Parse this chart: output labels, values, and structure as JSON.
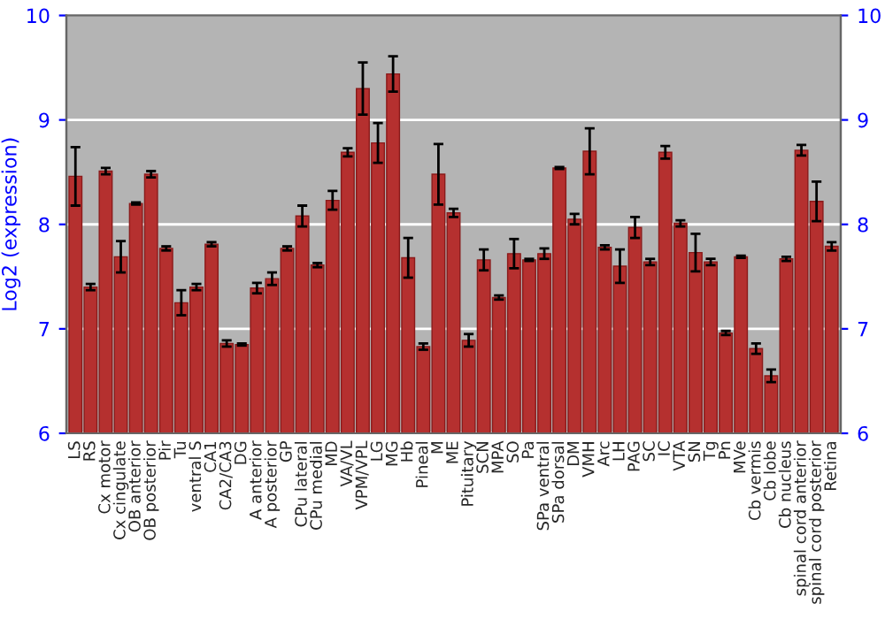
{
  "chart_data": {
    "type": "bar",
    "ylabel": "Log2 (expression)",
    "categories": [
      "LS",
      "RS",
      "Cx motor",
      "Cx cingulate",
      "OB anterior",
      "OB posterior",
      "Pir",
      "Tu",
      "ventral S",
      "CA1",
      "CA2/CA3",
      "DG",
      "A anterior",
      "A posterior",
      "GP",
      "CPu lateral",
      "CPu medial",
      "MD",
      "VA/VL",
      "VPM/VPL",
      "LG",
      "MG",
      "Hb",
      "Pineal",
      "M",
      "ME",
      "Pituitary",
      "SCN",
      "MPA",
      "SO",
      "Pa",
      "SPa ventral",
      "SPa dorsal",
      "DM",
      "VMH",
      "Arc",
      "LH",
      "PAG",
      "SC",
      "IC",
      "VTA",
      "SN",
      "Tg",
      "Pn",
      "MVe",
      "Cb vermis",
      "Cb lobe",
      "Cb nucleus",
      "spinal cord anterior",
      "spinal cord posterior",
      "Retina"
    ],
    "values": [
      8.46,
      7.4,
      8.51,
      7.69,
      8.2,
      8.48,
      7.77,
      7.25,
      7.4,
      7.81,
      6.86,
      6.85,
      7.39,
      7.48,
      7.77,
      8.08,
      7.61,
      8.23,
      8.69,
      9.3,
      8.78,
      9.44,
      7.68,
      6.83,
      8.48,
      8.11,
      6.89,
      7.66,
      7.3,
      7.72,
      7.66,
      7.72,
      8.54,
      8.05,
      8.7,
      7.78,
      7.6,
      7.97,
      7.64,
      8.69,
      8.01,
      7.73,
      7.64,
      6.96,
      7.69,
      6.81,
      6.55,
      7.67,
      8.71,
      8.22,
      7.79
    ],
    "errors": [
      0.28,
      0.03,
      0.03,
      0.15,
      0.01,
      0.03,
      0.02,
      0.12,
      0.03,
      0.02,
      0.03,
      0.01,
      0.05,
      0.06,
      0.02,
      0.1,
      0.02,
      0.09,
      0.04,
      0.25,
      0.19,
      0.17,
      0.19,
      0.03,
      0.29,
      0.04,
      0.06,
      0.1,
      0.02,
      0.14,
      0.01,
      0.05,
      0.01,
      0.05,
      0.22,
      0.02,
      0.16,
      0.1,
      0.03,
      0.06,
      0.03,
      0.18,
      0.03,
      0.02,
      0.01,
      0.05,
      0.06,
      0.02,
      0.05,
      0.19,
      0.04
    ],
    "color": "#b5302f",
    "ylim": [
      6,
      10
    ],
    "yticks": [
      6,
      7,
      8,
      9,
      10
    ],
    "y2lim": [
      6,
      10
    ],
    "y2ticks": [
      6,
      7,
      8,
      9,
      10
    ],
    "grid": "y"
  }
}
